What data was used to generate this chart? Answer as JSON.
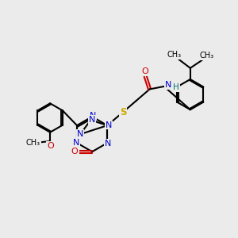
{
  "bg_color": "#ebebeb",
  "bond_color": "#000000",
  "N_color": "#0000cc",
  "O_color": "#cc0000",
  "S_color": "#ccaa00",
  "H_color": "#007070",
  "lw": 1.5,
  "xlim": [
    0,
    10
  ],
  "ylim": [
    0,
    10
  ]
}
